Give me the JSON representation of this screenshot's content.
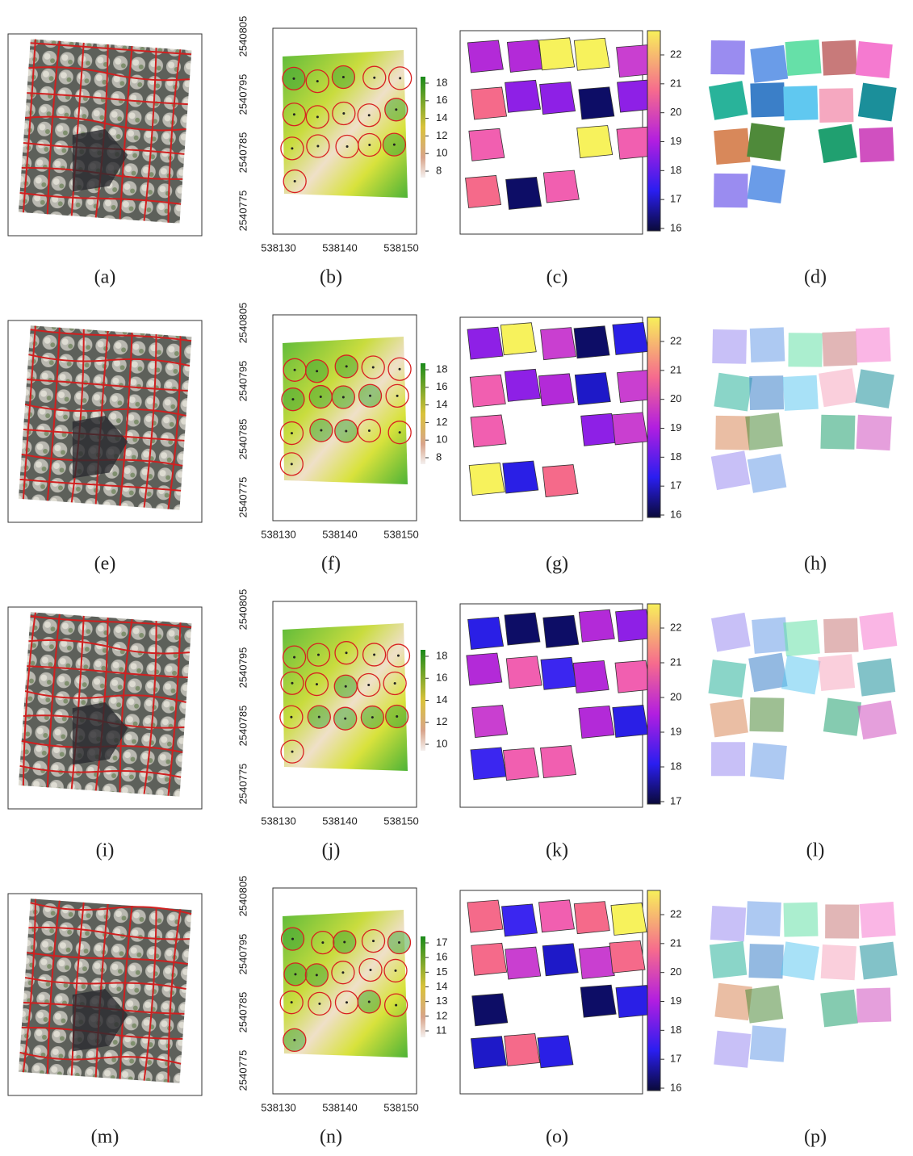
{
  "rows": [
    {
      "labels": [
        "(a)",
        "(b)",
        "(c)",
        "(d)"
      ],
      "chm_xticks": [
        538130,
        538140,
        538150
      ],
      "chm_yticks": [
        2540805,
        2540795,
        2540785,
        2540775
      ],
      "chm_legend": [
        18,
        16,
        14,
        12,
        10,
        8
      ],
      "height_legend": [
        22,
        21,
        20,
        19,
        18,
        17,
        16
      ]
    },
    {
      "labels": [
        "(e)",
        "(f)",
        "(g)",
        "(h)"
      ],
      "chm_xticks": [
        538130,
        538140,
        538150
      ],
      "chm_yticks": [
        2540805,
        2540795,
        2540785,
        2540775
      ],
      "chm_legend": [
        18,
        16,
        14,
        12,
        10,
        8
      ],
      "height_legend": [
        22,
        21,
        20,
        19,
        18,
        17,
        16
      ]
    },
    {
      "labels": [
        "(i)",
        "(j)",
        "(k)",
        "(l)"
      ],
      "chm_xticks": [
        538130,
        538140,
        538150
      ],
      "chm_yticks": [
        2540805,
        2540795,
        2540785,
        2540775
      ],
      "chm_legend": [
        18,
        16,
        14,
        12,
        10
      ],
      "height_legend": [
        22,
        21,
        20,
        19,
        18,
        17
      ]
    },
    {
      "labels": [
        "(m)",
        "(n)",
        "(o)",
        "(p)"
      ],
      "chm_xticks": [
        538130,
        538140,
        538150
      ],
      "chm_yticks": [
        2540805,
        2540795,
        2540785,
        2540775
      ],
      "chm_legend": [
        17,
        16,
        15,
        14,
        13,
        12,
        11
      ],
      "height_legend": [
        22,
        21,
        20,
        19,
        18,
        17,
        16
      ]
    }
  ]
}
